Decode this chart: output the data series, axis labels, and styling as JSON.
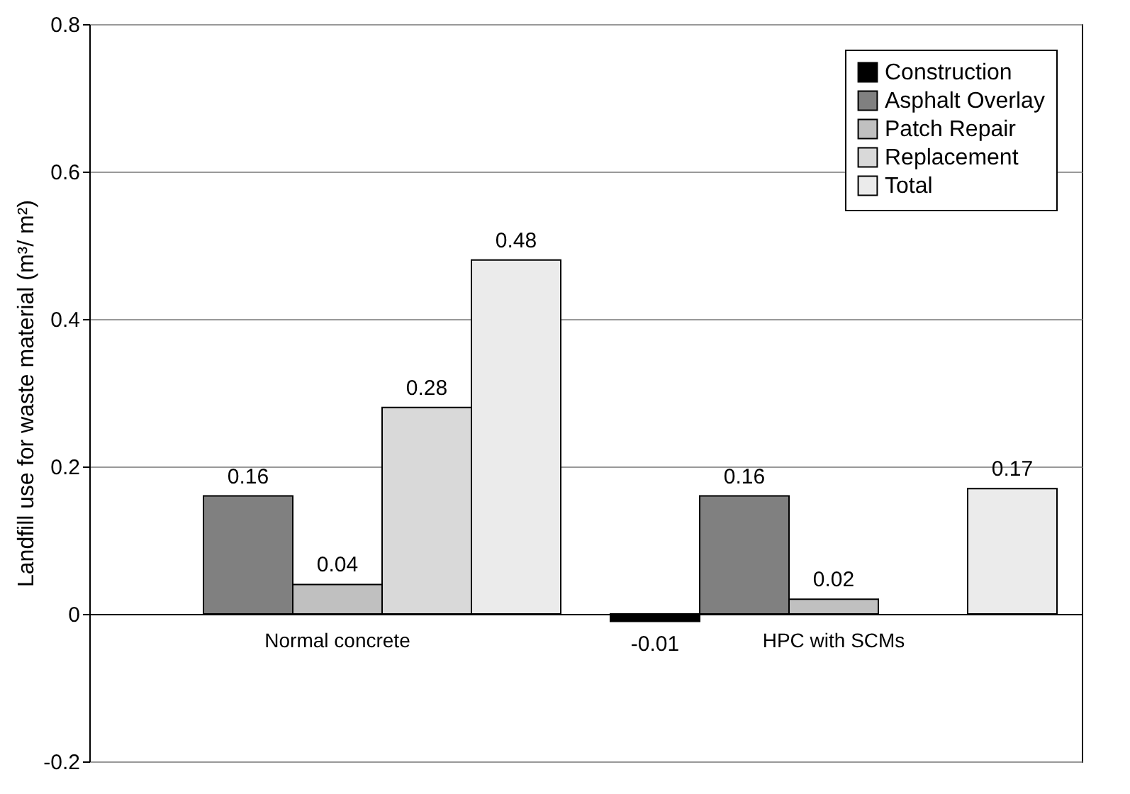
{
  "chart_data": {
    "type": "bar",
    "ylabel": "Landfill use for waste material (m³/ m²)",
    "categories": [
      "Normal concrete",
      "HPC with SCMs"
    ],
    "series": [
      {
        "name": "Construction",
        "color": "#000000",
        "values": [
          null,
          -0.01
        ]
      },
      {
        "name": "Asphalt Overlay",
        "color": "#808080",
        "values": [
          0.16,
          0.16
        ]
      },
      {
        "name": "Patch Repair",
        "color": "#c0c0c0",
        "values": [
          0.04,
          0.02
        ]
      },
      {
        "name": "Replacement",
        "color": "#d9d9d9",
        "values": [
          0.28,
          null
        ]
      },
      {
        "name": "Total",
        "color": "#ebebeb",
        "values": [
          0.48,
          0.17
        ]
      }
    ],
    "ylim": [
      -0.2,
      0.8
    ],
    "yticks": [
      -0.2,
      0,
      0.2,
      0.4,
      0.6,
      0.8
    ],
    "grid": "y",
    "legend": "top right",
    "data_labels": true
  }
}
